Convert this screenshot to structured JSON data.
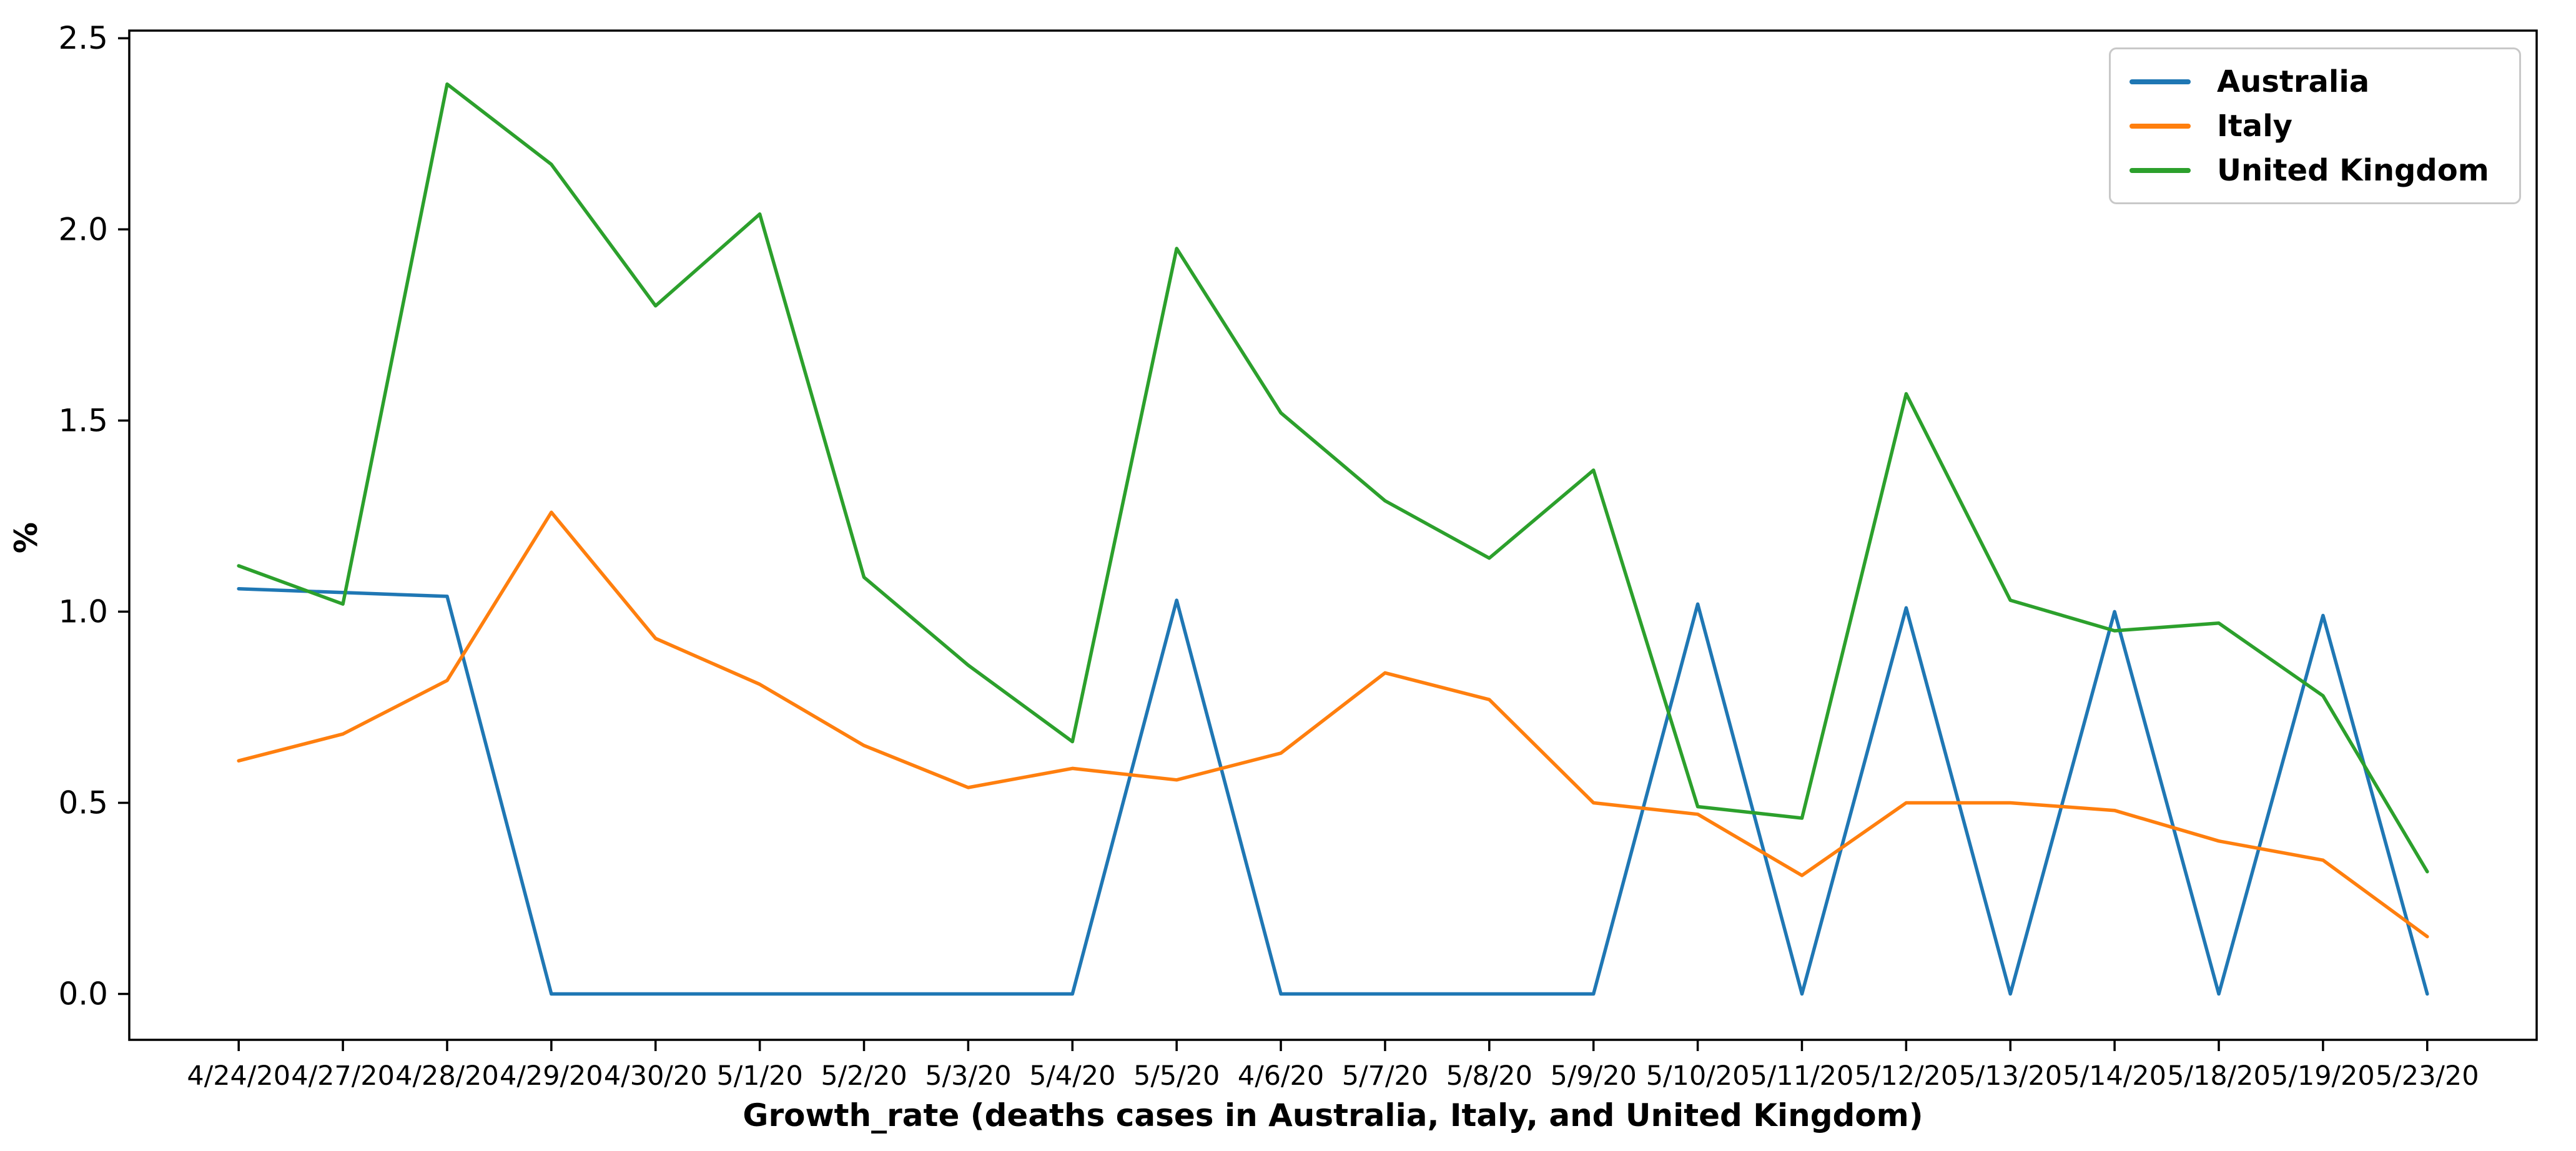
{
  "chart_data": {
    "type": "line",
    "title": "",
    "xlabel": "Growth_rate (deaths cases in Australia, Italy, and United Kingdom)",
    "ylabel": "%",
    "categories": [
      "4/24/20",
      "4/27/20",
      "4/28/20",
      "4/29/20",
      "4/30/20",
      "5/1/20",
      "5/2/20",
      "5/3/20",
      "5/4/20",
      "5/5/20",
      "4/6/20",
      "5/7/20",
      "5/8/20",
      "5/9/20",
      "5/10/20",
      "5/11/20",
      "5/12/20",
      "5/13/20",
      "5/14/20",
      "5/18/20",
      "5/19/20",
      "5/23/20"
    ],
    "series": [
      {
        "name": "Australia",
        "color": "#1f77b4",
        "values": [
          1.06,
          1.05,
          1.04,
          0.0,
          0.0,
          0.0,
          0.0,
          0.0,
          0.0,
          1.03,
          0.0,
          0.0,
          0.0,
          0.0,
          1.02,
          0.0,
          1.01,
          0.0,
          1.0,
          0.0,
          0.99,
          0.0
        ]
      },
      {
        "name": "Italy",
        "color": "#ff7f0e",
        "values": [
          0.61,
          0.68,
          0.82,
          1.26,
          0.93,
          0.81,
          0.65,
          0.54,
          0.59,
          0.56,
          0.63,
          0.84,
          0.77,
          0.5,
          0.47,
          0.31,
          0.5,
          0.5,
          0.48,
          0.4,
          0.35,
          0.15
        ]
      },
      {
        "name": "United Kingdom",
        "color": "#2ca02c",
        "values": [
          1.12,
          1.02,
          2.38,
          2.17,
          1.8,
          2.04,
          1.09,
          0.86,
          0.66,
          1.95,
          1.52,
          1.29,
          1.14,
          1.37,
          0.49,
          0.46,
          1.57,
          1.03,
          0.95,
          0.97,
          0.78,
          0.32
        ]
      }
    ],
    "ytick_labels": [
      "0.0",
      "0.5",
      "1.0",
      "1.5",
      "2.0",
      "2.5"
    ],
    "ytick_values": [
      0.0,
      0.5,
      1.0,
      1.5,
      2.0,
      2.5
    ],
    "ylim": [
      -0.12,
      2.52
    ],
    "xlim": [
      -1.05,
      22.05
    ],
    "grid": false,
    "legend_position": "upper right",
    "axis_color": "#000000",
    "background_color": "#ffffff"
  }
}
